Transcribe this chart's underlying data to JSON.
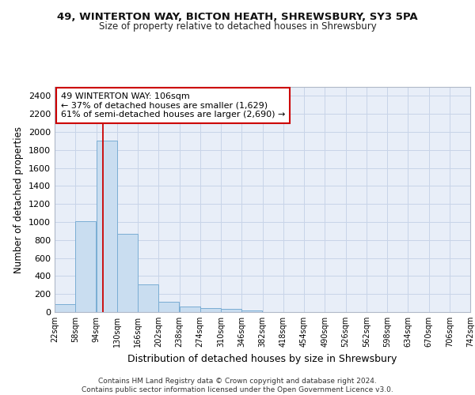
{
  "title": "49, WINTERTON WAY, BICTON HEATH, SHREWSBURY, SY3 5PA",
  "subtitle": "Size of property relative to detached houses in Shrewsbury",
  "xlabel": "Distribution of detached houses by size in Shrewsbury",
  "ylabel": "Number of detached properties",
  "bar_color": "#c9ddf0",
  "bar_edge_color": "#7aadd4",
  "grid_color": "#c8d4e8",
  "bg_color": "#e8eef8",
  "property_line_x": 106,
  "annotation_line1": "49 WINTERTON WAY: 106sqm",
  "annotation_line2": "← 37% of detached houses are smaller (1,629)",
  "annotation_line3": "61% of semi-detached houses are larger (2,690) →",
  "annotation_box_color": "#cc0000",
  "footer_text": "Contains HM Land Registry data © Crown copyright and database right 2024.\nContains public sector information licensed under the Open Government Licence v3.0.",
  "bin_edges": [
    22,
    58,
    94,
    130,
    166,
    202,
    238,
    274,
    310,
    346,
    382,
    418,
    454,
    490,
    526,
    562,
    598,
    634,
    670,
    706,
    742
  ],
  "bar_heights": [
    90,
    1010,
    1900,
    865,
    310,
    115,
    58,
    48,
    33,
    20,
    0,
    0,
    0,
    0,
    0,
    0,
    0,
    0,
    0,
    0
  ],
  "ylim": [
    0,
    2500
  ],
  "yticks": [
    0,
    200,
    400,
    600,
    800,
    1000,
    1200,
    1400,
    1600,
    1800,
    2000,
    2200,
    2400
  ]
}
